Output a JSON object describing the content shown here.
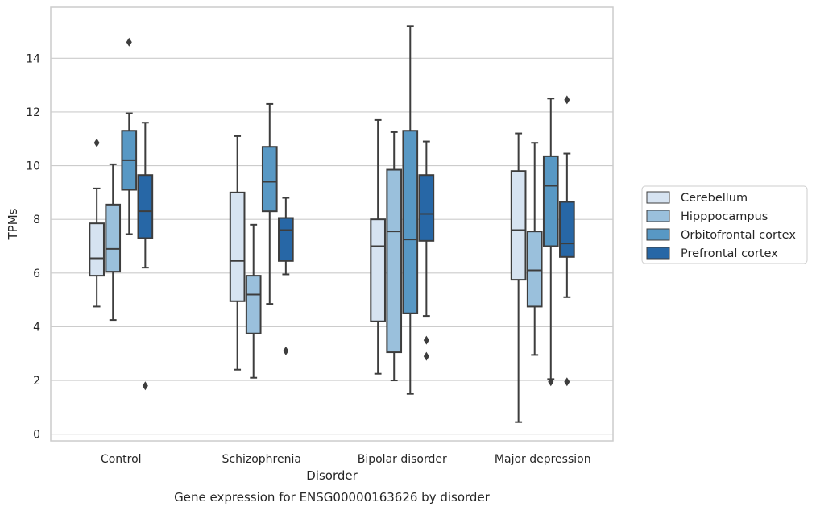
{
  "chart_data": {
    "type": "box",
    "caption": "Gene expression for ENSG00000163626 by disorder",
    "xlabel": "Disorder",
    "ylabel": "TPMs",
    "ylim": [
      -0.25,
      15.9
    ],
    "yticks": [
      "0",
      "2",
      "4",
      "6",
      "8",
      "10",
      "12",
      "14"
    ],
    "grid": "horizontal",
    "legend_position": "right",
    "categories": [
      "Control",
      "Schizophrenia",
      "Bipolar disorder",
      "Major depression"
    ],
    "series": [
      {
        "name": "Cerebellum",
        "color": "#d6e3f1",
        "boxes": [
          {
            "whisker_low": 4.75,
            "q1": 5.9,
            "median": 6.55,
            "q3": 7.85,
            "whisker_high": 9.15,
            "outliers": [
              10.85
            ]
          },
          {
            "whisker_low": 2.4,
            "q1": 4.95,
            "median": 6.45,
            "q3": 9.0,
            "whisker_high": 11.1,
            "outliers": []
          },
          {
            "whisker_low": 2.25,
            "q1": 4.2,
            "median": 7.0,
            "q3": 8.0,
            "whisker_high": 11.7,
            "outliers": []
          },
          {
            "whisker_low": 0.45,
            "q1": 5.75,
            "median": 7.6,
            "q3": 9.8,
            "whisker_high": 11.2,
            "outliers": []
          }
        ]
      },
      {
        "name": "Hipppocampus",
        "color": "#9ac0dc",
        "boxes": [
          {
            "whisker_low": 4.25,
            "q1": 6.05,
            "median": 6.9,
            "q3": 8.55,
            "whisker_high": 10.05,
            "outliers": []
          },
          {
            "whisker_low": 2.1,
            "q1": 3.75,
            "median": 5.2,
            "q3": 5.9,
            "whisker_high": 7.8,
            "outliers": []
          },
          {
            "whisker_low": 2.0,
            "q1": 3.05,
            "median": 7.55,
            "q3": 9.85,
            "whisker_high": 11.25,
            "outliers": []
          },
          {
            "whisker_low": 2.95,
            "q1": 4.75,
            "median": 6.1,
            "q3": 7.55,
            "whisker_high": 10.85,
            "outliers": []
          }
        ]
      },
      {
        "name": "Orbitofrontal cortex",
        "color": "#5898c4",
        "boxes": [
          {
            "whisker_low": 7.45,
            "q1": 9.1,
            "median": 10.2,
            "q3": 11.3,
            "whisker_high": 11.95,
            "outliers": [
              14.6
            ]
          },
          {
            "whisker_low": 4.85,
            "q1": 8.3,
            "median": 9.4,
            "q3": 10.7,
            "whisker_high": 12.3,
            "outliers": []
          },
          {
            "whisker_low": 1.5,
            "q1": 4.5,
            "median": 7.25,
            "q3": 11.3,
            "whisker_high": 15.2,
            "outliers": []
          },
          {
            "whisker_low": 2.05,
            "q1": 7.0,
            "median": 9.25,
            "q3": 10.35,
            "whisker_high": 12.5,
            "outliers": [
              1.95
            ]
          }
        ]
      },
      {
        "name": "Prefrontal cortex",
        "color": "#2767a6",
        "boxes": [
          {
            "whisker_low": 6.2,
            "q1": 7.3,
            "median": 8.3,
            "q3": 9.65,
            "whisker_high": 11.6,
            "outliers": [
              1.8
            ]
          },
          {
            "whisker_low": 5.95,
            "q1": 6.45,
            "median": 7.6,
            "q3": 8.05,
            "whisker_high": 8.8,
            "outliers": [
              3.1
            ]
          },
          {
            "whisker_low": 4.4,
            "q1": 7.2,
            "median": 8.2,
            "q3": 9.65,
            "whisker_high": 10.9,
            "outliers": [
              3.5,
              2.9
            ]
          },
          {
            "whisker_low": 5.1,
            "q1": 6.6,
            "median": 7.1,
            "q3": 8.65,
            "whisker_high": 10.45,
            "outliers": [
              12.45,
              1.95
            ]
          }
        ]
      }
    ]
  }
}
